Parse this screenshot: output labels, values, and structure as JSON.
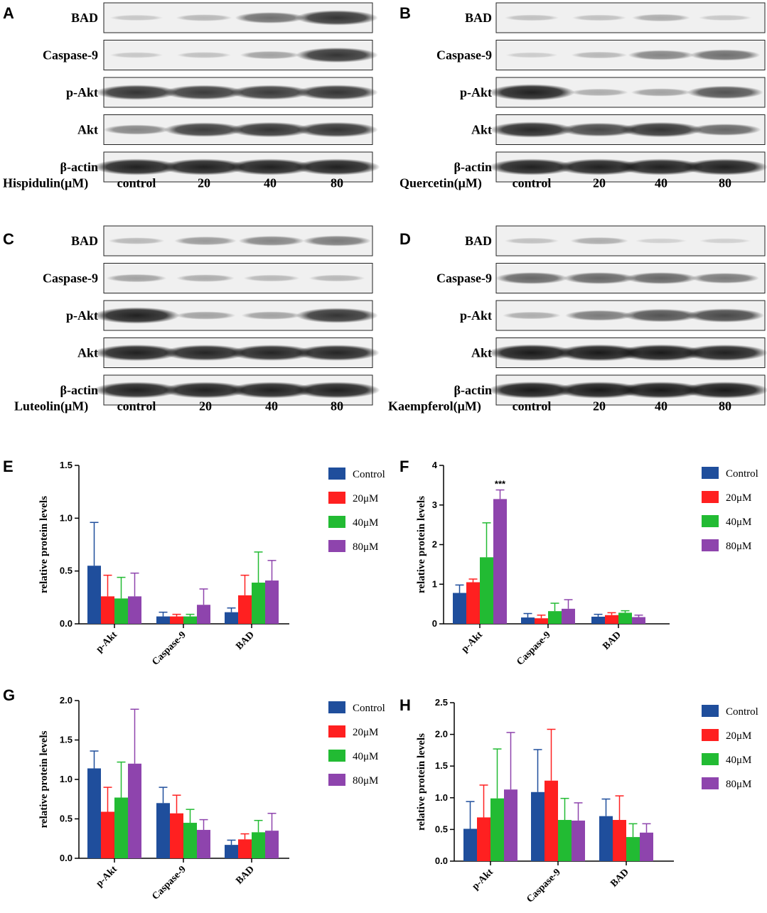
{
  "colors": {
    "control": "#1f4e9c",
    "c20": "#ff2020",
    "c40": "#22bb33",
    "c80": "#8e44ad",
    "membrane": "#f0f0f0",
    "band": "#161616"
  },
  "blots": [
    {
      "letter": "A",
      "treatment_label": "Hispidulin(μM)",
      "lanes": [
        "control",
        "20",
        "40",
        "80"
      ],
      "rows": [
        {
          "label": "BAD",
          "bands": [
            0.12,
            0.2,
            0.55,
            0.85
          ]
        },
        {
          "label": "Caspase-9",
          "bands": [
            0.12,
            0.15,
            0.3,
            0.85
          ]
        },
        {
          "label": "p-Akt",
          "bands": [
            0.85,
            0.82,
            0.82,
            0.85
          ]
        },
        {
          "label": "Akt",
          "bands": [
            0.45,
            0.8,
            0.85,
            0.85
          ]
        },
        {
          "label": "β-actin",
          "bands": [
            0.95,
            0.95,
            0.95,
            0.95
          ]
        }
      ]
    },
    {
      "letter": "B",
      "treatment_label": "Quercetin(μM)",
      "lanes": [
        "control",
        "20",
        "40",
        "80"
      ],
      "rows": [
        {
          "label": "BAD",
          "bands": [
            0.15,
            0.15,
            0.25,
            0.12
          ]
        },
        {
          "label": "Caspase-9",
          "bands": [
            0.1,
            0.2,
            0.45,
            0.55
          ]
        },
        {
          "label": "p-Akt",
          "bands": [
            0.95,
            0.25,
            0.3,
            0.7
          ]
        },
        {
          "label": "Akt",
          "bands": [
            0.9,
            0.75,
            0.85,
            0.6
          ]
        },
        {
          "label": "β-actin",
          "bands": [
            0.95,
            0.95,
            0.95,
            0.95
          ]
        }
      ]
    },
    {
      "letter": "C",
      "treatment_label": "Luteolin(μM)",
      "lanes": [
        "control",
        "20",
        "40",
        "80"
      ],
      "rows": [
        {
          "label": "BAD",
          "bands": [
            0.2,
            0.35,
            0.45,
            0.5
          ]
        },
        {
          "label": "Caspase-9",
          "bands": [
            0.3,
            0.25,
            0.2,
            0.2
          ]
        },
        {
          "label": "p-Akt",
          "bands": [
            0.95,
            0.3,
            0.3,
            0.85
          ]
        },
        {
          "label": "Akt",
          "bands": [
            0.95,
            0.92,
            0.92,
            0.92
          ]
        },
        {
          "label": "β-actin",
          "bands": [
            0.95,
            0.95,
            0.95,
            0.95
          ]
        }
      ]
    },
    {
      "letter": "D",
      "treatment_label": "Kaempferol(μM)",
      "lanes": [
        "control",
        "20",
        "40",
        "80"
      ],
      "rows": [
        {
          "label": "BAD",
          "bands": [
            0.15,
            0.25,
            0.08,
            0.08
          ]
        },
        {
          "label": "Caspase-9",
          "bands": [
            0.6,
            0.6,
            0.6,
            0.5
          ]
        },
        {
          "label": "p-Akt",
          "bands": [
            0.25,
            0.5,
            0.7,
            0.75
          ]
        },
        {
          "label": "Akt",
          "bands": [
            0.98,
            0.98,
            0.98,
            0.95
          ]
        },
        {
          "label": "β-actin",
          "bands": [
            0.98,
            0.98,
            0.98,
            0.98
          ]
        }
      ]
    }
  ],
  "chart_data": [
    {
      "type": "bar",
      "panel": "E",
      "categories": [
        "p-Akt",
        "Caspase-9",
        "BAD"
      ],
      "ylabel": "relative protein levels",
      "ylim": [
        0,
        1.5
      ],
      "yticks": [
        "0.0",
        "0.5",
        "1.0",
        "1.5"
      ],
      "ytick_values": [
        0,
        0.5,
        1.0,
        1.5
      ],
      "series": [
        {
          "name": "Control",
          "values": [
            0.55,
            0.07,
            0.11
          ],
          "errors": [
            0.41,
            0.04,
            0.04
          ]
        },
        {
          "name": "20μM",
          "values": [
            0.26,
            0.07,
            0.27
          ],
          "errors": [
            0.2,
            0.02,
            0.19
          ]
        },
        {
          "name": "40μM",
          "values": [
            0.24,
            0.07,
            0.39
          ],
          "errors": [
            0.2,
            0.02,
            0.29
          ]
        },
        {
          "name": "80μM",
          "values": [
            0.26,
            0.18,
            0.41
          ],
          "errors": [
            0.22,
            0.15,
            0.19
          ]
        }
      ],
      "annotations": []
    },
    {
      "type": "bar",
      "panel": "F",
      "categories": [
        "p-Akt",
        "Caspase-9",
        "BAD"
      ],
      "ylabel": "relative protein levels",
      "ylim": [
        0,
        4
      ],
      "yticks": [
        "0",
        "1",
        "2",
        "3",
        "4"
      ],
      "ytick_values": [
        0,
        1,
        2,
        3,
        4
      ],
      "series": [
        {
          "name": "Control",
          "values": [
            0.78,
            0.16,
            0.18
          ],
          "errors": [
            0.2,
            0.1,
            0.06
          ]
        },
        {
          "name": "20μM",
          "values": [
            1.05,
            0.14,
            0.22
          ],
          "errors": [
            0.08,
            0.08,
            0.06
          ]
        },
        {
          "name": "40μM",
          "values": [
            1.68,
            0.32,
            0.28
          ],
          "errors": [
            0.87,
            0.2,
            0.05
          ]
        },
        {
          "name": "80μM",
          "values": [
            3.15,
            0.38,
            0.17
          ],
          "errors": [
            0.23,
            0.23,
            0.05
          ]
        }
      ],
      "annotations": [
        {
          "text": "***",
          "category": 0,
          "series": 3
        }
      ]
    },
    {
      "type": "bar",
      "panel": "G",
      "categories": [
        "p-Akt",
        "Caspase-9",
        "BAD"
      ],
      "ylabel": "relative protein levels",
      "ylim": [
        0,
        2.0
      ],
      "yticks": [
        "0.0",
        "0.5",
        "1.0",
        "1.5",
        "2.0"
      ],
      "ytick_values": [
        0,
        0.5,
        1.0,
        1.5,
        2.0
      ],
      "series": [
        {
          "name": "Control",
          "values": [
            1.14,
            0.7,
            0.17
          ],
          "errors": [
            0.22,
            0.2,
            0.06
          ]
        },
        {
          "name": "20μM",
          "values": [
            0.59,
            0.57,
            0.24
          ],
          "errors": [
            0.31,
            0.23,
            0.07
          ]
        },
        {
          "name": "40μM",
          "values": [
            0.77,
            0.45,
            0.33
          ],
          "errors": [
            0.45,
            0.17,
            0.15
          ]
        },
        {
          "name": "80μM",
          "values": [
            1.2,
            0.36,
            0.35
          ],
          "errors": [
            0.69,
            0.13,
            0.22
          ]
        }
      ],
      "annotations": []
    },
    {
      "type": "bar",
      "panel": "H",
      "categories": [
        "p-Akt",
        "Caspase-9",
        "BAD"
      ],
      "ylabel": "relative protein levels",
      "ylim": [
        0,
        2.5
      ],
      "yticks": [
        "0.0",
        "0.5",
        "1.0",
        "1.5",
        "2.0",
        "2.5"
      ],
      "ytick_values": [
        0,
        0.5,
        1.0,
        1.5,
        2.0,
        2.5
      ],
      "series": [
        {
          "name": "Control",
          "values": [
            0.51,
            1.09,
            0.71
          ],
          "errors": [
            0.43,
            0.67,
            0.27
          ]
        },
        {
          "name": "20μM",
          "values": [
            0.69,
            1.27,
            0.65
          ],
          "errors": [
            0.51,
            0.81,
            0.38
          ]
        },
        {
          "name": "40μM",
          "values": [
            0.99,
            0.65,
            0.38
          ],
          "errors": [
            0.78,
            0.34,
            0.21
          ]
        },
        {
          "name": "80μM",
          "values": [
            1.13,
            0.64,
            0.45
          ],
          "errors": [
            0.9,
            0.28,
            0.14
          ]
        }
      ],
      "annotations": []
    }
  ]
}
